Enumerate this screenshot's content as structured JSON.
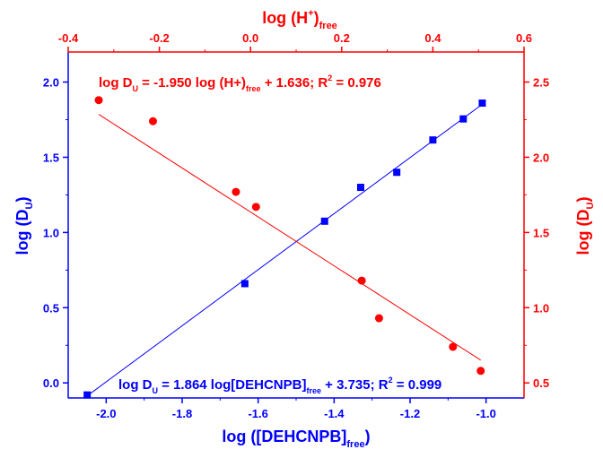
{
  "chart_data": {
    "type": "scatter",
    "colors": {
      "blue": "#0000ff",
      "red": "#ff0000",
      "frame": "#000000"
    },
    "bottom_axis": {
      "label": "log ([DEHCNPB]",
      "label_sub": "free",
      "label_end": ")",
      "range": [
        -2.1,
        -0.9
      ],
      "ticks": [
        -2.0,
        -1.8,
        -1.6,
        -1.4,
        -1.2,
        -1.0
      ],
      "tick_labels": [
        "-2.0",
        "-1.8",
        "-1.6",
        "-1.4",
        "-1.2",
        "-1.0"
      ],
      "color": "#0000ff"
    },
    "left_axis": {
      "label": "log (D",
      "label_sub": "U",
      "label_end": ")",
      "range": [
        -0.1,
        2.2
      ],
      "ticks": [
        0.0,
        0.5,
        1.0,
        1.5,
        2.0
      ],
      "tick_labels": [
        "0.0",
        "0.5",
        "1.0",
        "1.5",
        "2.0"
      ],
      "color": "#0000ff"
    },
    "top_axis": {
      "label": "log (H",
      "label_sup": "+",
      "label_mid": ")",
      "label_sub": "free",
      "range": [
        -0.4,
        0.6
      ],
      "ticks": [
        -0.4,
        -0.2,
        0.0,
        0.2,
        0.4,
        0.6
      ],
      "tick_labels": [
        "-0.4",
        "-0.2",
        "0.0",
        "0.2",
        "0.4",
        "0.6"
      ],
      "color": "#ff0000"
    },
    "right_axis": {
      "label": "log (D",
      "label_sub": "U",
      "label_end": ")",
      "range": [
        0.4,
        2.7
      ],
      "ticks": [
        0.5,
        1.0,
        1.5,
        2.0,
        2.5
      ],
      "tick_labels": [
        "0.5",
        "1.0",
        "1.5",
        "2.0",
        "2.5"
      ],
      "color": "#ff0000"
    },
    "series": [
      {
        "axes": "bottom-left",
        "marker": "square",
        "color": "#0000ff",
        "x": [
          -2.05,
          -1.635,
          -1.425,
          -1.33,
          -1.235,
          -1.14,
          -1.06,
          -1.01
        ],
        "y": [
          -0.08,
          0.66,
          1.075,
          1.3,
          1.4,
          1.615,
          1.755,
          1.86
        ],
        "fit": {
          "slope": 1.864,
          "intercept": 3.735,
          "x_range": [
            -2.05,
            -1.01
          ]
        }
      },
      {
        "axes": "top-right",
        "marker": "circle",
        "color": "#ff0000",
        "x": [
          -0.333,
          -0.214,
          -0.032,
          0.012,
          0.244,
          0.282,
          0.444,
          0.505
        ],
        "y": [
          2.38,
          2.24,
          1.77,
          1.67,
          1.18,
          0.93,
          0.74,
          0.58
        ],
        "fit": {
          "slope": -1.95,
          "intercept": 1.636,
          "x_range": [
            -0.333,
            0.505
          ]
        }
      }
    ],
    "annotations": {
      "red_eq": {
        "a": "log D",
        "a_sub": "U",
        "b": " = -1.950 log (H+)",
        "b_sub": "free",
        "c": " + 1.636; R",
        "c_sup": "2",
        "d": " = 0.976",
        "color": "#ff0000"
      },
      "blue_eq": {
        "a": "log D",
        "a_sub": "U",
        "b": " = 1.864 log[DEHCNPB]",
        "b_sub": "free",
        "c": " + 3.735; R",
        "c_sup": "2",
        "d": " = 0.999",
        "color": "#0000ff"
      }
    },
    "grid": false,
    "legend": "none"
  }
}
